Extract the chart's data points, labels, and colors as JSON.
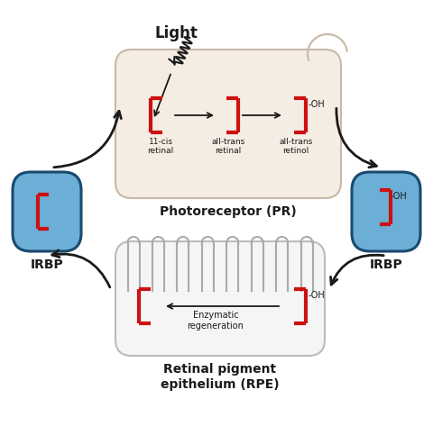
{
  "bg_color": "#ffffff",
  "pr_box_color": "#f5ede3",
  "pr_box_edge": "#c8b8a8",
  "rpe_box_color": "#f5f5f5",
  "rpe_box_edge": "#bbbbbb",
  "irbp_color": "#6baed6",
  "irbp_edge": "#1a4a6e",
  "red_color": "#cc1111",
  "black": "#1a1a1a",
  "gray_villi": "#aaaaaa",
  "title": "Light",
  "pr_label": "Photoreceptor (PR)",
  "rpe_label": "Retinal pigment\nepithelium (RPE)",
  "irbp_label": "IRBP",
  "labels_11cis": "11-cis\nretinal",
  "labels_alltrans_ret": "all-trans\nretinal",
  "labels_alltrans_retinol": "all-trans\nretinol",
  "enzymatic_label": "Enzymatic\nregeneration",
  "oh_label": "-OH"
}
